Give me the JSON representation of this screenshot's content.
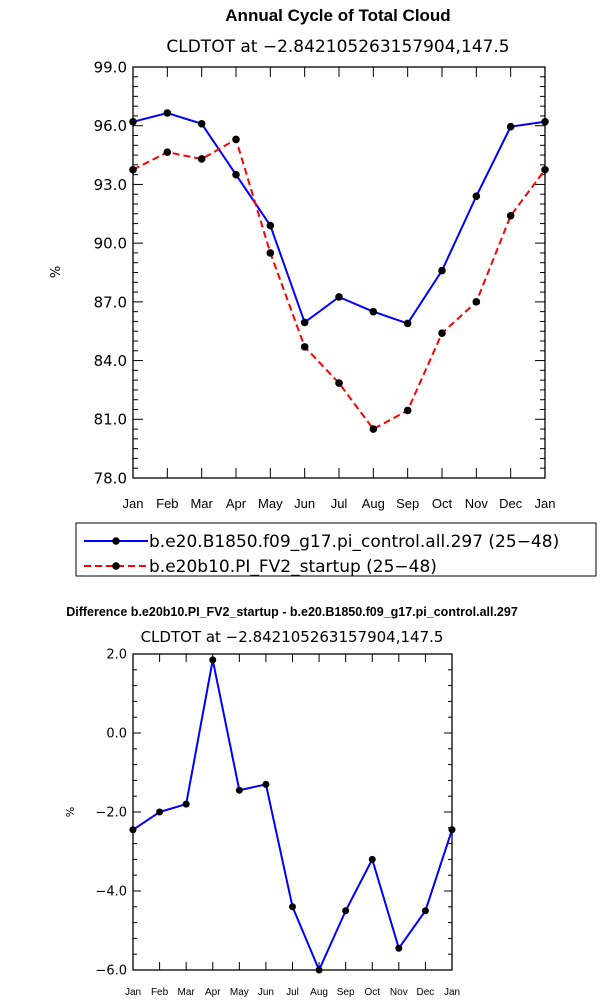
{
  "chart_data": [
    {
      "type": "line",
      "title": "Annual Cycle of Total Cloud",
      "subtitle": "CLDTOT at −2.842105263157904,147.5",
      "xlabel": "",
      "ylabel": "%",
      "categories": [
        "Jan",
        "Feb",
        "Mar",
        "Apr",
        "May",
        "Jun",
        "Jul",
        "Aug",
        "Sep",
        "Oct",
        "Nov",
        "Dec",
        "Jan"
      ],
      "ylim": [
        78.0,
        99.0
      ],
      "yticks": [
        "78.0",
        "81.0",
        "84.0",
        "87.0",
        "90.0",
        "93.0",
        "96.0",
        "99.0"
      ],
      "series": [
        {
          "name": "b.e20.B1850.f09_g17.pi_control.all.297 (25−48)",
          "color": "#0000ff",
          "style": "solid",
          "values": [
            96.2,
            96.65,
            96.1,
            93.5,
            90.9,
            85.95,
            87.25,
            86.5,
            85.9,
            88.6,
            92.4,
            95.95,
            96.2
          ]
        },
        {
          "name": "b.e20b10.PI_FV2_startup (25−48)",
          "color": "#ff0000",
          "style": "dashed",
          "values": [
            93.75,
            94.65,
            94.3,
            95.3,
            89.5,
            84.7,
            82.85,
            80.5,
            81.45,
            85.4,
            87.0,
            91.4,
            93.75
          ]
        }
      ]
    },
    {
      "type": "line",
      "title": "Difference b.e20b10.PI_FV2_startup - b.e20.B1850.f09_g17.pi_control.all.297",
      "subtitle": "CLDTOT at −2.842105263157904,147.5",
      "xlabel": "",
      "ylabel": "%",
      "categories": [
        "Jan",
        "Feb",
        "Mar",
        "Apr",
        "May",
        "Jun",
        "Jul",
        "Aug",
        "Sep",
        "Oct",
        "Nov",
        "Dec",
        "Jan"
      ],
      "ylim": [
        -6.0,
        2.0
      ],
      "yticks": [
        "−6.0",
        "−4.0",
        "−2.0",
        "0.0",
        "2.0"
      ],
      "series": [
        {
          "name": "Difference",
          "color": "#0000ff",
          "style": "solid",
          "values": [
            -2.45,
            -2.0,
            -1.8,
            1.85,
            -1.45,
            -1.3,
            -4.4,
            -6.0,
            -4.5,
            -3.2,
            -5.45,
            -4.5,
            -2.45
          ]
        }
      ]
    }
  ]
}
